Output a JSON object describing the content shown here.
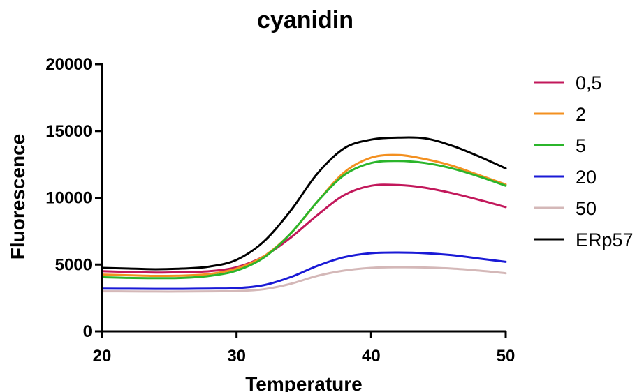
{
  "chart_data": {
    "type": "line",
    "title": "cyanidin",
    "xlabel": "Temperature",
    "ylabel": "Fluorescence",
    "xlim": [
      20,
      50
    ],
    "ylim": [
      0,
      20000
    ],
    "x_ticks": [
      "20",
      "30",
      "40",
      "50"
    ],
    "y_ticks": [
      "0",
      "5000",
      "10000",
      "15000",
      "20000"
    ],
    "grid": false,
    "legend_position": "right",
    "x": [
      20,
      22,
      24,
      26,
      28,
      30,
      32,
      34,
      36,
      38,
      40,
      42,
      44,
      46,
      48,
      50
    ],
    "series": [
      {
        "name": "0,5",
        "color": "#c2185b",
        "values": [
          4500,
          4450,
          4400,
          4430,
          4500,
          4800,
          5600,
          7000,
          8700,
          10200,
          10900,
          10950,
          10750,
          10350,
          9850,
          9300
        ]
      },
      {
        "name": "2",
        "color": "#f39020",
        "values": [
          4250,
          4200,
          4150,
          4170,
          4300,
          4700,
          5600,
          7300,
          9700,
          11900,
          13000,
          13200,
          12900,
          12400,
          11700,
          11000
        ]
      },
      {
        "name": "5",
        "color": "#2bb52b",
        "values": [
          4050,
          4000,
          3980,
          4000,
          4150,
          4550,
          5500,
          7300,
          9700,
          11700,
          12600,
          12750,
          12600,
          12200,
          11600,
          10900
        ]
      },
      {
        "name": "20",
        "color": "#1a1ad6",
        "values": [
          3200,
          3190,
          3180,
          3180,
          3200,
          3230,
          3450,
          4050,
          4900,
          5550,
          5850,
          5900,
          5850,
          5700,
          5450,
          5200
        ]
      },
      {
        "name": "50",
        "color": "#d4b8b8",
        "values": [
          3000,
          2990,
          2980,
          2980,
          3000,
          3020,
          3150,
          3550,
          4150,
          4550,
          4750,
          4800,
          4780,
          4700,
          4550,
          4350
        ]
      },
      {
        "name": "ERp57",
        "color": "#000000",
        "values": [
          4750,
          4700,
          4650,
          4700,
          4850,
          5350,
          6700,
          9000,
          11800,
          13700,
          14350,
          14500,
          14450,
          13900,
          13100,
          12200
        ]
      }
    ]
  }
}
